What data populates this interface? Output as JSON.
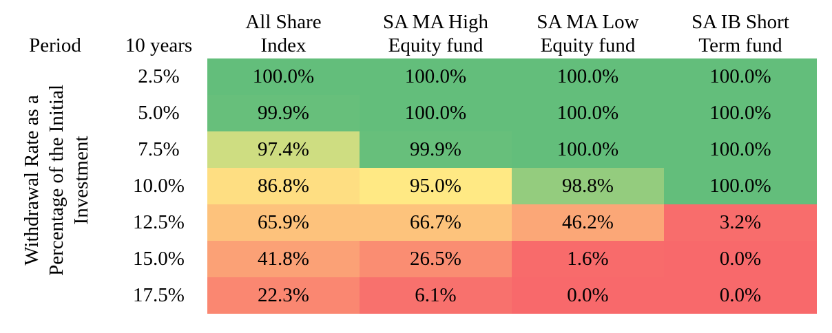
{
  "chart_data": {
    "type": "heatmap",
    "corner_label": "Period",
    "row_header_label": "10 years",
    "ylabel_lines": [
      "Withdrawal Rate as a",
      "Percentage of the Initial",
      "Investment"
    ],
    "columns": [
      {
        "lines": [
          "All Share",
          "Index"
        ]
      },
      {
        "lines": [
          "SA MA High",
          "Equity fund"
        ]
      },
      {
        "lines": [
          "SA MA Low",
          "Equity fund"
        ]
      },
      {
        "lines": [
          "SA IB Short",
          "Term fund"
        ]
      }
    ],
    "rows": [
      "2.5%",
      "5.0%",
      "7.5%",
      "10.0%",
      "12.5%",
      "15.0%",
      "17.5%"
    ],
    "values": [
      [
        100.0,
        100.0,
        100.0,
        100.0
      ],
      [
        99.9,
        100.0,
        100.0,
        100.0
      ],
      [
        97.4,
        99.9,
        100.0,
        100.0
      ],
      [
        86.8,
        95.0,
        98.8,
        100.0
      ],
      [
        65.9,
        66.7,
        46.2,
        3.2
      ],
      [
        41.8,
        26.5,
        1.6,
        0.0
      ],
      [
        22.3,
        6.1,
        0.0,
        0.0
      ]
    ],
    "value_format": "percent_1dp",
    "color_scale": {
      "low": "#f8696b",
      "mid": "#ffeb84",
      "high": "#63be7b"
    }
  }
}
